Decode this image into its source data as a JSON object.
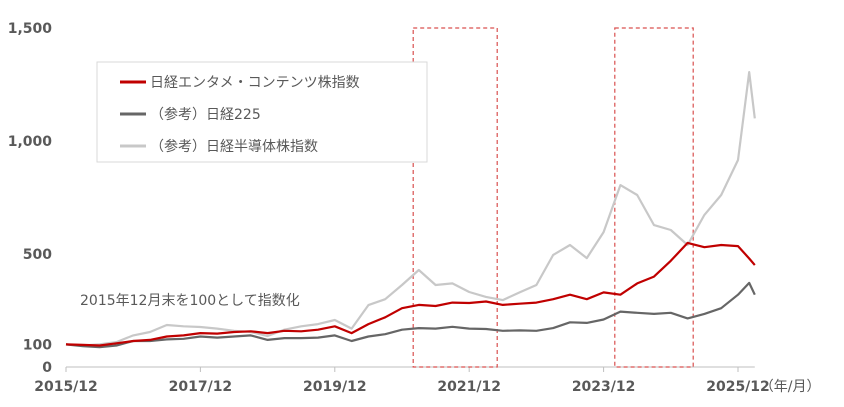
{
  "chart_data": {
    "type": "line",
    "x": [
      "2015/12",
      "2016/03",
      "2016/06",
      "2016/09",
      "2016/12",
      "2017/03",
      "2017/06",
      "2017/09",
      "2017/12",
      "2018/03",
      "2018/06",
      "2018/09",
      "2018/12",
      "2019/03",
      "2019/06",
      "2019/09",
      "2019/12",
      "2020/03",
      "2020/06",
      "2020/09",
      "2020/12",
      "2021/03",
      "2021/06",
      "2021/09",
      "2021/12",
      "2022/03",
      "2022/06",
      "2022/09",
      "2022/12",
      "2023/03",
      "2023/06",
      "2023/09",
      "2023/12",
      "2024/03",
      "2024/06",
      "2024/09",
      "2024/12",
      "2025/03",
      "2025/06",
      "2025/09",
      "2025/12",
      "2026/02",
      "2026/03"
    ],
    "series": [
      {
        "name": "日経エンタメ・コンテンツ株指数",
        "color": "#c00000",
        "values": [
          100,
          98,
          95,
          105,
          115,
          120,
          135,
          140,
          150,
          148,
          155,
          158,
          150,
          160,
          158,
          165,
          180,
          150,
          190,
          220,
          260,
          275,
          270,
          285,
          283,
          290,
          275,
          280,
          285,
          300,
          320,
          300,
          330,
          320,
          370,
          400,
          470,
          549,
          530,
          540,
          535,
          480,
          451
        ]
      },
      {
        "name": "（参考）日経225",
        "color": "#666666",
        "values": [
          100,
          92,
          88,
          95,
          115,
          115,
          122,
          125,
          135,
          130,
          135,
          140,
          120,
          128,
          128,
          130,
          140,
          115,
          135,
          145,
          165,
          172,
          170,
          178,
          170,
          168,
          160,
          162,
          160,
          172,
          198,
          195,
          210,
          245,
          240,
          235,
          240,
          215,
          235,
          260,
          320,
          372,
          320
        ]
      },
      {
        "name": "（参考）日経半導体株指数",
        "color": "#c8c8c8",
        "values": [
          100,
          95,
          100,
          110,
          140,
          155,
          186,
          180,
          177,
          170,
          160,
          155,
          137,
          165,
          180,
          190,
          208,
          170,
          274,
          300,
          363,
          429,
          363,
          370,
          332,
          310,
          296,
          330,
          363,
          496,
          540,
          482,
          597,
          805,
          761,
          628,
          606,
          540,
          673,
          761,
          916,
          1305,
          1100
        ]
      }
    ],
    "xlim": [
      "2015/12",
      "2026/03"
    ],
    "xticks": [
      "2015/12",
      "2017/12",
      "2019/12",
      "2021/12",
      "2023/12",
      "2025/12"
    ],
    "xlabel": "（年/月）",
    "ylim": [
      0,
      1500
    ],
    "yticks": [
      0,
      100,
      500,
      {
        "value": 1000,
        "label": "1,000"
      },
      {
        "value": 1500,
        "label": "1,500"
      }
    ],
    "annotation": "2015年12月末を100として指数化",
    "highlights": [
      [
        "2021/02",
        "2022/05"
      ],
      [
        "2024/02",
        "2025/04"
      ]
    ],
    "highlight_color": "#d9504f",
    "legend": "upper left"
  }
}
